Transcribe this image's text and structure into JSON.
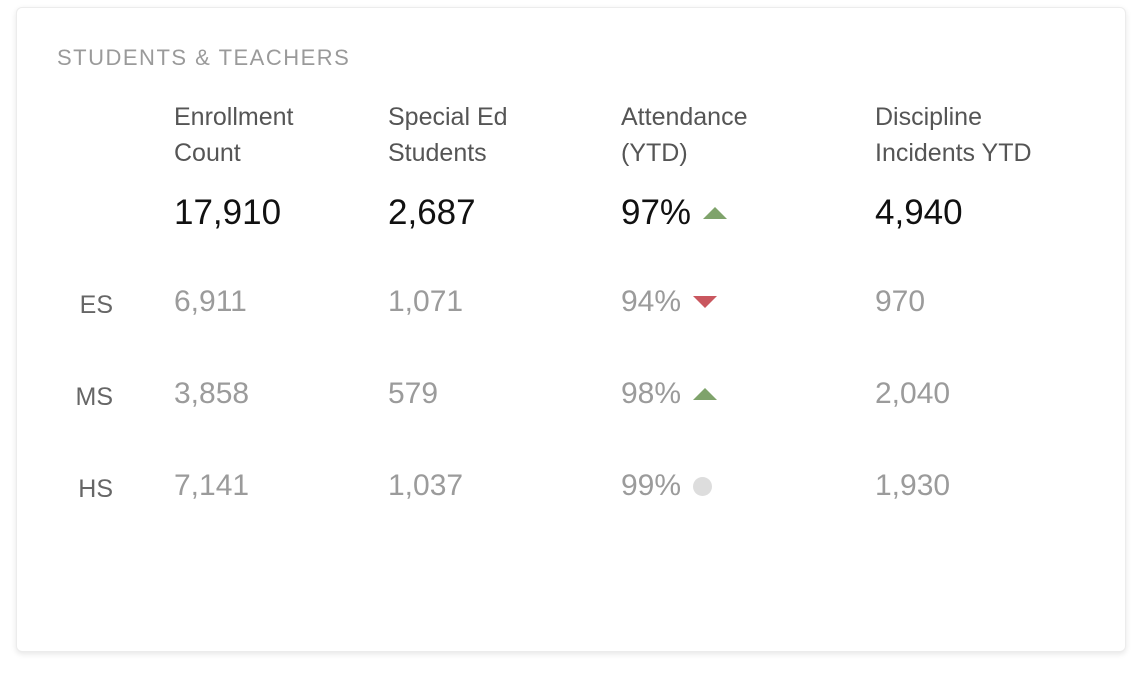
{
  "colors": {
    "up": "#7fa36b",
    "down": "#c9575f",
    "neutral": "#dddddd"
  },
  "panel": {
    "title": "STUDENTS & TEACHERS",
    "columns": [
      {
        "line1": "Enrollment",
        "line2": "Count"
      },
      {
        "line1": "Special Ed",
        "line2": "Students"
      },
      {
        "line1": "Attendance",
        "line2": "(YTD)"
      },
      {
        "line1": "Discipline",
        "line2": "Incidents YTD"
      }
    ],
    "totals": {
      "enrollment": "17,910",
      "special_ed": "2,687",
      "attendance": "97%",
      "attendance_trend": "up",
      "discipline": "4,940"
    },
    "rows": [
      {
        "label": "ES",
        "enrollment": "6,911",
        "special_ed": "1,071",
        "attendance": "94%",
        "trend": "down",
        "discipline": "970"
      },
      {
        "label": "MS",
        "enrollment": "3,858",
        "special_ed": "579",
        "attendance": "98%",
        "trend": "up",
        "discipline": "2,040"
      },
      {
        "label": "HS",
        "enrollment": "7,141",
        "special_ed": "1,037",
        "attendance": "99%",
        "trend": "neutral",
        "discipline": "1,930"
      }
    ]
  }
}
